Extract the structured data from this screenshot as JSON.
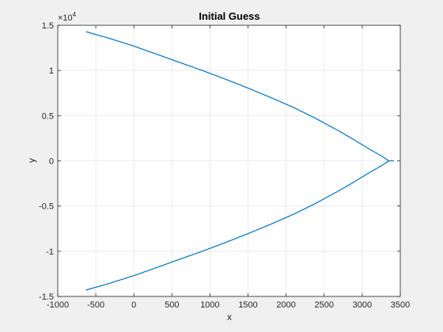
{
  "chart_data": {
    "type": "line",
    "title": "Initial Guess",
    "xlabel": "x",
    "ylabel": "y",
    "xlim": [
      -1000,
      3500
    ],
    "ylim": [
      -15000,
      15000
    ],
    "x_ticks": [
      -1000,
      -500,
      0,
      500,
      1000,
      1500,
      2000,
      2500,
      3000,
      3500
    ],
    "x_tick_labels": [
      "-1000",
      "-500",
      "0",
      "500",
      "1000",
      "1500",
      "2000",
      "2500",
      "3000",
      "3500"
    ],
    "y_ticks": [
      -15000,
      -10000,
      -5000,
      0,
      5000,
      10000,
      15000
    ],
    "y_tick_labels": [
      "-1.5",
      "-1",
      "-0.5",
      "0",
      "0.5",
      "1",
      "1.5"
    ],
    "y_exponent_label": "×10",
    "y_exponent_power": "4",
    "grid": true,
    "series": [
      {
        "color": "#0072bd",
        "x": [
          -630,
          -300,
          0,
          300,
          600,
          900,
          1200,
          1500,
          1800,
          2100,
          2400,
          2700,
          2900,
          3100,
          3250,
          3350,
          3410,
          3350,
          3250,
          3100,
          2900,
          2700,
          2400,
          2100,
          1800,
          1500,
          1200,
          900,
          600,
          300,
          0,
          -300,
          -630
        ],
        "y": [
          14300,
          13500,
          12700,
          11800,
          10900,
          10000,
          9050,
          8050,
          7000,
          5900,
          4650,
          3280,
          2300,
          1270,
          560,
          0,
          0,
          0,
          -560,
          -1270,
          -2300,
          -3280,
          -4650,
          -5900,
          -7000,
          -8050,
          -9050,
          -10000,
          -10900,
          -11800,
          -12700,
          -13500,
          -14300
        ]
      }
    ]
  },
  "colors": {
    "figure_bg": "#f0f0f0",
    "axes_bg": "#ffffff",
    "grid": "#e6e6e6",
    "axis": "#262626",
    "series": "#0072bd"
  }
}
